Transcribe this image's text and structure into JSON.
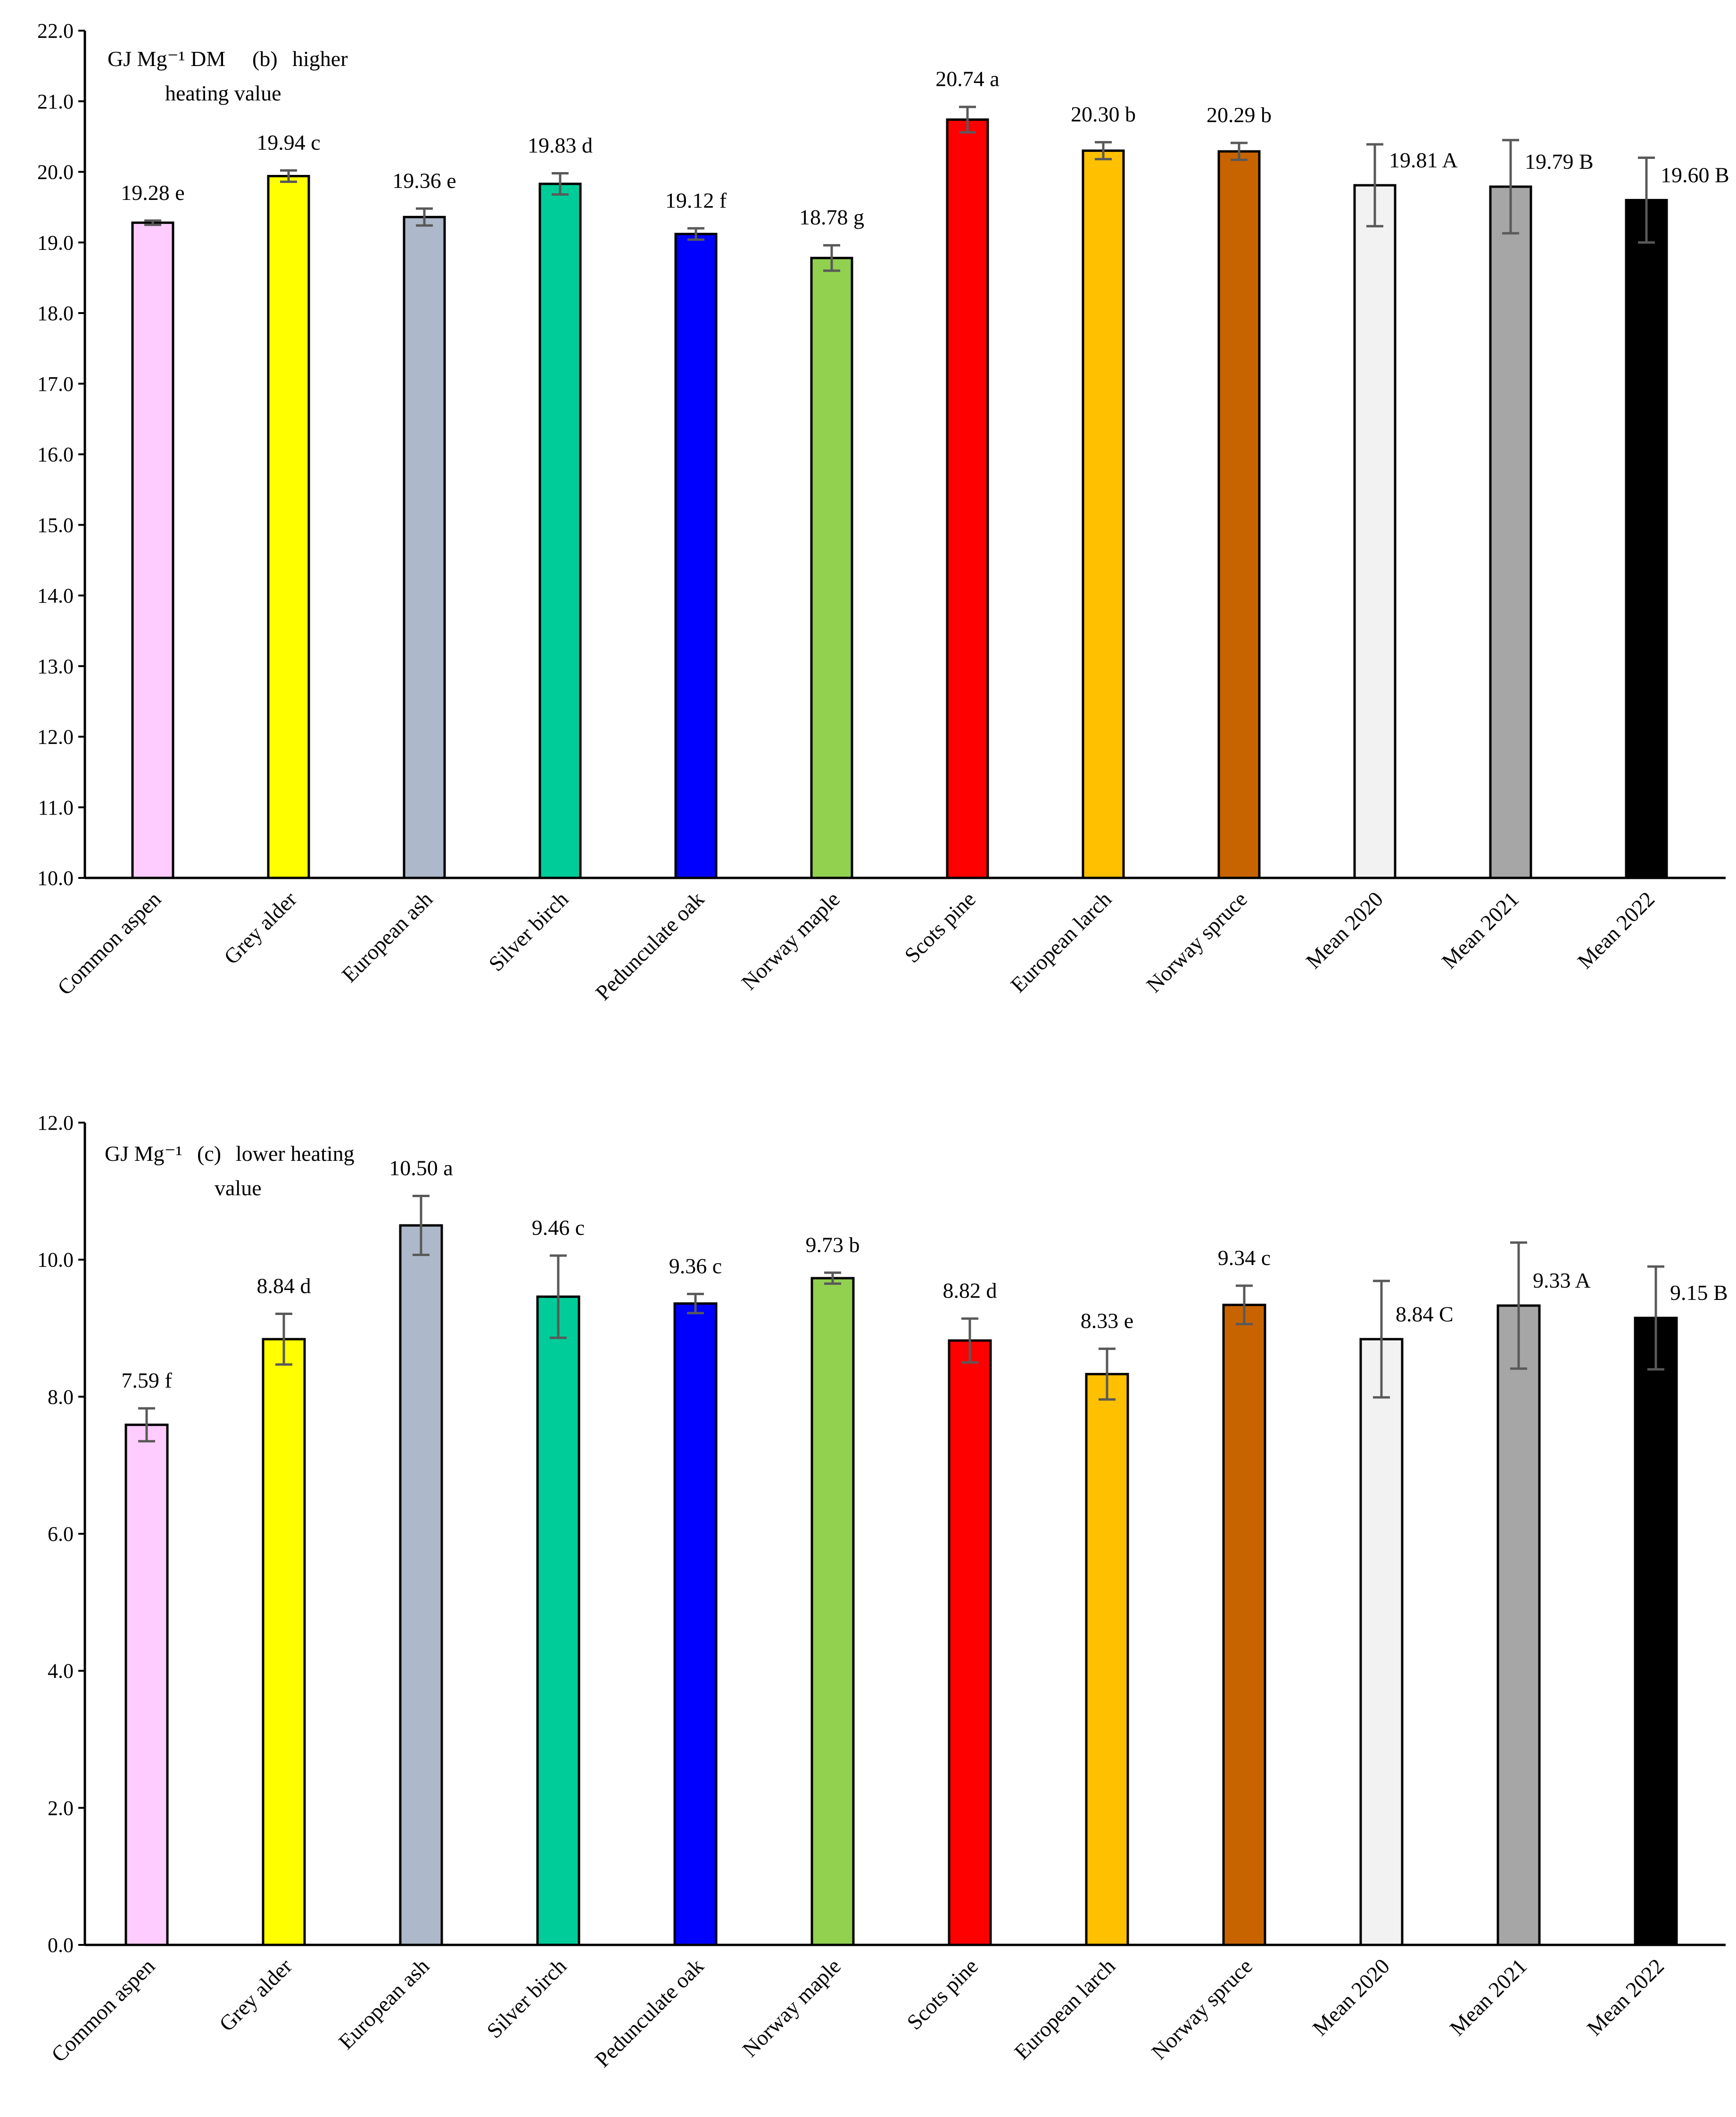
{
  "chart_data": [
    {
      "type": "bar",
      "title": "(b)  higher heating value",
      "panel_letter": "(b)",
      "title_line1": "higher",
      "title_line2": "heating value",
      "ylabel": "GJ Mg⁻¹ DM",
      "xlabel": "",
      "ylim": [
        10.0,
        22.0
      ],
      "yticks": [
        "10.0",
        "11.0",
        "12.0",
        "13.0",
        "14.0",
        "15.0",
        "16.0",
        "17.0",
        "18.0",
        "19.0",
        "20.0",
        "21.0",
        "22.0"
      ],
      "categories": [
        "Common aspen",
        "Grey alder",
        "European ash",
        "Silver birch",
        "Pedunculate oak",
        "Norway maple",
        "Scots pine",
        "European larch",
        "Norway spruce",
        "Mean 2020",
        "Mean 2021",
        "Mean 2022"
      ],
      "values": [
        19.28,
        19.94,
        19.36,
        19.83,
        19.12,
        18.78,
        20.74,
        20.3,
        20.29,
        19.81,
        19.79,
        19.6
      ],
      "errors": [
        0.03,
        0.08,
        0.12,
        0.15,
        0.08,
        0.18,
        0.18,
        0.12,
        0.12,
        0.58,
        0.66,
        0.6
      ],
      "labels": [
        "19.28 e",
        "19.94 c",
        "19.36 e",
        "19.83 d",
        "19.12 f",
        "18.78 g",
        "20.74 a",
        "20.30 b",
        "20.29 b",
        "19.81 A",
        "19.79 B",
        "19.60 B"
      ],
      "colors": [
        "#FFCCFF",
        "#FFFF00",
        "#ADB9CA",
        "#00CC99",
        "#0000FF",
        "#92D050",
        "#FF0000",
        "#FFC000",
        "#C86400",
        "#F2F2F2",
        "#A6A6A6",
        "#000000"
      ],
      "grid": false
    },
    {
      "type": "bar",
      "title": "(c)  lower heating value",
      "panel_letter": "(c)",
      "title_line1": "lower heating",
      "title_line2": "value",
      "ylabel": "GJ Mg⁻¹",
      "xlabel": "",
      "ylim": [
        0.0,
        12.0
      ],
      "yticks": [
        "0.0",
        "2.0",
        "4.0",
        "6.0",
        "8.0",
        "10.0",
        "12.0"
      ],
      "categories": [
        "Common aspen",
        "Grey alder",
        "European ash",
        "Silver birch",
        "Pedunculate oak",
        "Norway maple",
        "Scots pine",
        "European larch",
        "Norway spruce",
        "Mean 2020",
        "Mean 2021",
        "Mean 2022"
      ],
      "values": [
        7.59,
        8.84,
        10.5,
        9.46,
        9.36,
        9.73,
        8.82,
        8.33,
        9.34,
        8.84,
        9.33,
        9.15
      ],
      "errors": [
        0.24,
        0.37,
        0.43,
        0.6,
        0.14,
        0.08,
        0.32,
        0.37,
        0.28,
        0.85,
        0.92,
        0.75
      ],
      "labels": [
        "7.59 f",
        "8.84 d",
        "10.50 a",
        "9.46 c",
        "9.36 c",
        "9.73 b",
        "8.82 d",
        "8.33 e",
        "9.34 c",
        "8.84 C",
        "9.33 A",
        "9.15 B"
      ],
      "colors": [
        "#FFCCFF",
        "#FFFF00",
        "#ADB9CA",
        "#00CC99",
        "#0000FF",
        "#92D050",
        "#FF0000",
        "#FFC000",
        "#C86400",
        "#F2F2F2",
        "#A6A6A6",
        "#000000"
      ],
      "grid": false
    }
  ]
}
